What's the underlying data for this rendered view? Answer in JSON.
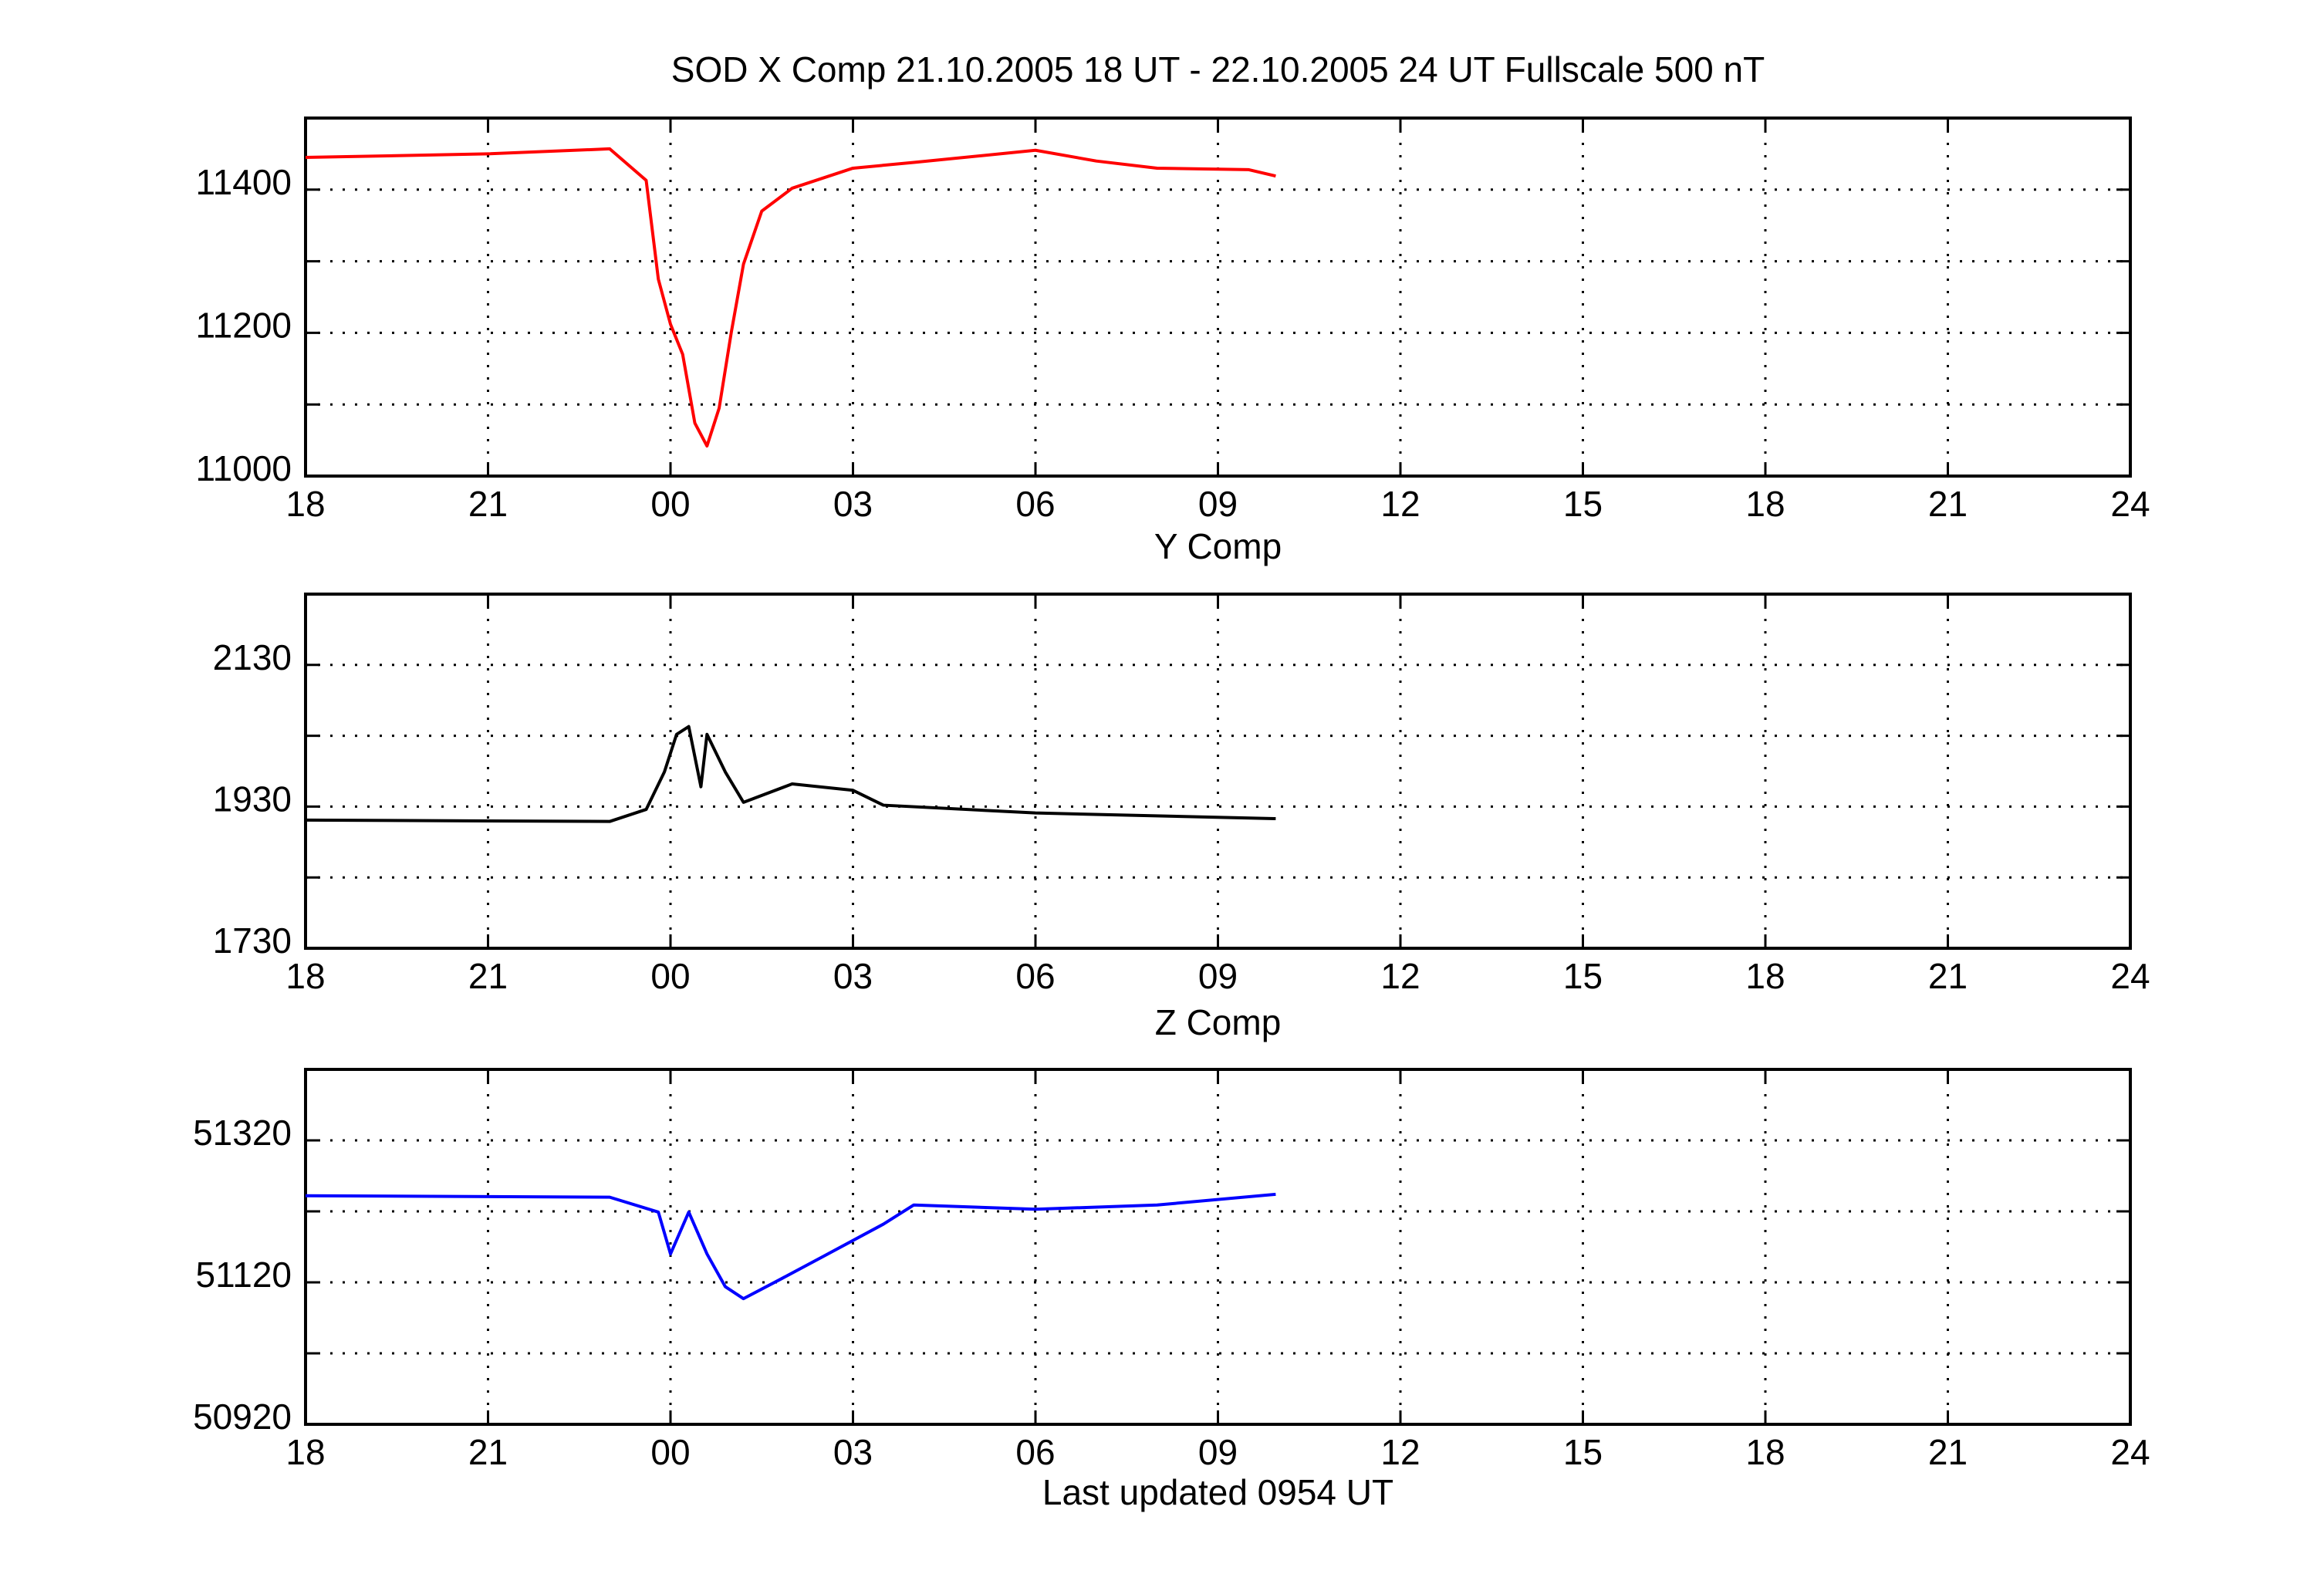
{
  "chart_data": [
    {
      "type": "line",
      "title": "SOD X Comp   21.10.2005   18 UT  -  22.10.2005   24 UT    Fullscale 500 nT",
      "xlim": [
        0,
        30
      ],
      "xticks": [
        {
          "value": 0,
          "label": "18"
        },
        {
          "value": 3,
          "label": "21"
        },
        {
          "value": 6,
          "label": "00"
        },
        {
          "value": 9,
          "label": "03"
        },
        {
          "value": 12,
          "label": "06"
        },
        {
          "value": 15,
          "label": "09"
        },
        {
          "value": 18,
          "label": "12"
        },
        {
          "value": 21,
          "label": "15"
        },
        {
          "value": 24,
          "label": "18"
        },
        {
          "value": 27,
          "label": "21"
        },
        {
          "value": 30,
          "label": "24"
        }
      ],
      "ylim": [
        11000,
        11500
      ],
      "yticks": [
        11000,
        11200,
        11400
      ],
      "yminor_ticks": [
        11100,
        11300
      ],
      "grid": true,
      "series": [
        {
          "color": "#ff0000",
          "x": [
            0,
            3,
            5,
            5.6,
            5.8,
            6.0,
            6.2,
            6.4,
            6.6,
            6.8,
            7.0,
            7.2,
            7.5,
            8,
            9,
            10,
            12,
            13,
            14,
            15.5,
            15.95
          ],
          "values": [
            11445,
            11450,
            11457,
            11413,
            11275,
            11212,
            11170,
            11074,
            11042,
            11095,
            11201,
            11296,
            11370,
            11402,
            11430,
            11438,
            11455,
            11440,
            11430,
            11428,
            11419
          ]
        }
      ]
    },
    {
      "type": "line",
      "title": "Y Comp",
      "xlim": [
        0,
        30
      ],
      "xticks": [
        {
          "value": 0,
          "label": "18"
        },
        {
          "value": 3,
          "label": "21"
        },
        {
          "value": 6,
          "label": "00"
        },
        {
          "value": 9,
          "label": "03"
        },
        {
          "value": 12,
          "label": "06"
        },
        {
          "value": 15,
          "label": "09"
        },
        {
          "value": 18,
          "label": "12"
        },
        {
          "value": 21,
          "label": "15"
        },
        {
          "value": 24,
          "label": "18"
        },
        {
          "value": 27,
          "label": "21"
        },
        {
          "value": 30,
          "label": "24"
        }
      ],
      "ylim": [
        1730,
        2230
      ],
      "yticks": [
        1730,
        1930,
        2130
      ],
      "yminor_ticks": [
        1830,
        2030
      ],
      "grid": true,
      "series": [
        {
          "color": "#000000",
          "x": [
            0,
            5,
            5.6,
            5.9,
            6.1,
            6.3,
            6.5,
            6.6,
            6.9,
            7.2,
            8,
            9,
            9.5,
            12,
            15.95
          ],
          "values": [
            1911,
            1909,
            1926,
            1979,
            2032,
            2043,
            1958,
            2032,
            1979,
            1936,
            1962,
            1953,
            1932,
            1921,
            1913
          ]
        }
      ]
    },
    {
      "type": "line",
      "title": "Z Comp",
      "annotation": "Last updated 0954 UT",
      "xlim": [
        0,
        30
      ],
      "xticks": [
        {
          "value": 0,
          "label": "18"
        },
        {
          "value": 3,
          "label": "21"
        },
        {
          "value": 6,
          "label": "00"
        },
        {
          "value": 9,
          "label": "03"
        },
        {
          "value": 12,
          "label": "06"
        },
        {
          "value": 15,
          "label": "09"
        },
        {
          "value": 18,
          "label": "12"
        },
        {
          "value": 21,
          "label": "15"
        },
        {
          "value": 24,
          "label": "18"
        },
        {
          "value": 27,
          "label": "21"
        },
        {
          "value": 30,
          "label": "24"
        }
      ],
      "ylim": [
        50920,
        51420
      ],
      "yticks": [
        50920,
        51120,
        51320
      ],
      "yminor_ticks": [
        51020,
        51220
      ],
      "grid": true,
      "series": [
        {
          "color": "#0000ff",
          "x": [
            0,
            5,
            5.8,
            6.0,
            6.3,
            6.6,
            6.9,
            7.2,
            7.8,
            8.5,
            9.5,
            10,
            12,
            14,
            15.95
          ],
          "values": [
            51242,
            51240,
            51219,
            51160,
            51219,
            51160,
            51114,
            51097,
            51124,
            51156,
            51202,
            51229,
            51223,
            51229,
            51244
          ]
        }
      ]
    }
  ]
}
